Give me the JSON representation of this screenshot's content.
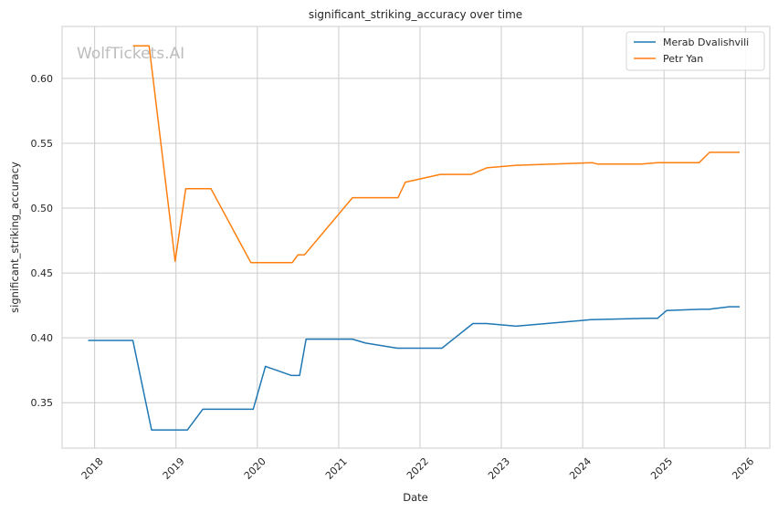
{
  "chart_data": {
    "type": "line",
    "title": "significant_striking_accuracy over time",
    "xlabel": "Date",
    "ylabel": "significant_striking_accuracy",
    "watermark": "WolfTickets.AI",
    "xlim": [
      2017.6,
      2026.3
    ],
    "ylim": [
      0.315,
      0.64
    ],
    "x_ticks": [
      2018,
      2019,
      2020,
      2021,
      2022,
      2023,
      2024,
      2025,
      2026
    ],
    "x_tick_labels": [
      "2018",
      "2019",
      "2020",
      "2021",
      "2022",
      "2023",
      "2024",
      "2025",
      "2026"
    ],
    "y_ticks": [
      0.35,
      0.4,
      0.45,
      0.5,
      0.55,
      0.6
    ],
    "y_tick_labels": [
      "0.35",
      "0.40",
      "0.45",
      "0.50",
      "0.55",
      "0.60"
    ],
    "grid": true,
    "legend_position": "top-right",
    "series": [
      {
        "name": "Merab Dvalishvili",
        "color": "#1f77b4",
        "points": [
          [
            2017.92,
            0.398
          ],
          [
            2018.47,
            0.398
          ],
          [
            2018.7,
            0.329
          ],
          [
            2019.14,
            0.329
          ],
          [
            2019.33,
            0.345
          ],
          [
            2019.95,
            0.345
          ],
          [
            2020.1,
            0.378
          ],
          [
            2020.42,
            0.371
          ],
          [
            2020.52,
            0.371
          ],
          [
            2020.6,
            0.399
          ],
          [
            2021.17,
            0.399
          ],
          [
            2021.33,
            0.396
          ],
          [
            2021.72,
            0.392
          ],
          [
            2022.27,
            0.392
          ],
          [
            2022.65,
            0.411
          ],
          [
            2022.82,
            0.411
          ],
          [
            2023.18,
            0.409
          ],
          [
            2024.1,
            0.414
          ],
          [
            2024.8,
            0.415
          ],
          [
            2024.92,
            0.415
          ],
          [
            2025.03,
            0.421
          ],
          [
            2025.45,
            0.422
          ],
          [
            2025.55,
            0.422
          ],
          [
            2025.8,
            0.424
          ],
          [
            2025.93,
            0.424
          ]
        ]
      },
      {
        "name": "Petr Yan",
        "color": "#ff7f0e",
        "points": [
          [
            2018.47,
            0.625
          ],
          [
            2018.67,
            0.625
          ],
          [
            2018.99,
            0.459
          ],
          [
            2019.12,
            0.515
          ],
          [
            2019.43,
            0.515
          ],
          [
            2019.92,
            0.458
          ],
          [
            2020.43,
            0.458
          ],
          [
            2020.5,
            0.464
          ],
          [
            2020.58,
            0.464
          ],
          [
            2021.17,
            0.508
          ],
          [
            2021.73,
            0.508
          ],
          [
            2021.82,
            0.52
          ],
          [
            2022.25,
            0.526
          ],
          [
            2022.63,
            0.526
          ],
          [
            2022.82,
            0.531
          ],
          [
            2023.18,
            0.533
          ],
          [
            2024.12,
            0.535
          ],
          [
            2024.18,
            0.534
          ],
          [
            2024.72,
            0.534
          ],
          [
            2024.92,
            0.535
          ],
          [
            2025.43,
            0.535
          ],
          [
            2025.56,
            0.543
          ],
          [
            2025.8,
            0.543
          ],
          [
            2025.93,
            0.543
          ]
        ]
      }
    ]
  }
}
